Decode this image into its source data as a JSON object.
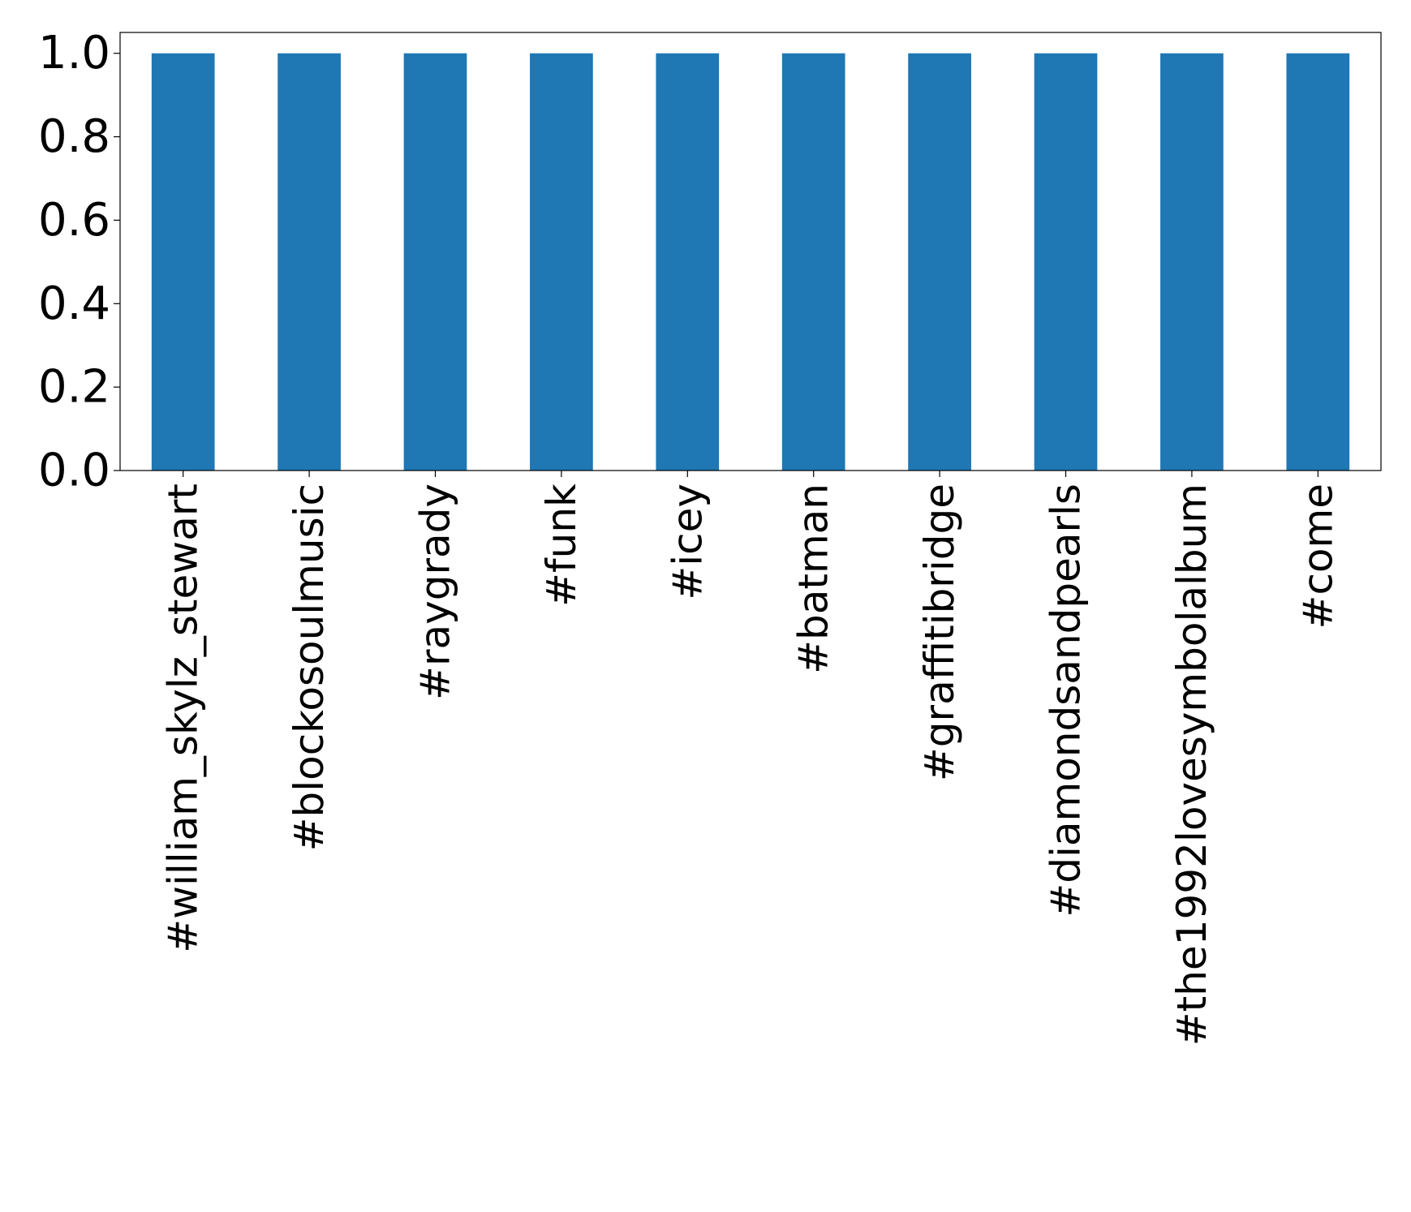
{
  "chart_data": {
    "type": "bar",
    "title": "",
    "xlabel": "",
    "ylabel": "",
    "categories": [
      "#william_skylz_stewart",
      "#blockosoulmusic",
      "#raygrady",
      "#funk",
      "#icey",
      "#batman",
      "#graffitibridge",
      "#diamondsandpearls",
      "#the1992lovesymbolalbum",
      "#come"
    ],
    "values": [
      1.0,
      1.0,
      1.0,
      1.0,
      1.0,
      1.0,
      1.0,
      1.0,
      1.0,
      1.0
    ],
    "ylim": [
      0,
      1.05
    ],
    "yticks": [
      0.0,
      0.2,
      0.4,
      0.6,
      0.8,
      1.0
    ],
    "ytick_labels": [
      "0.0",
      "0.2",
      "0.4",
      "0.6",
      "0.8",
      "1.0"
    ],
    "grid": false,
    "legend": "none",
    "bar_color": "#1f77b4"
  }
}
